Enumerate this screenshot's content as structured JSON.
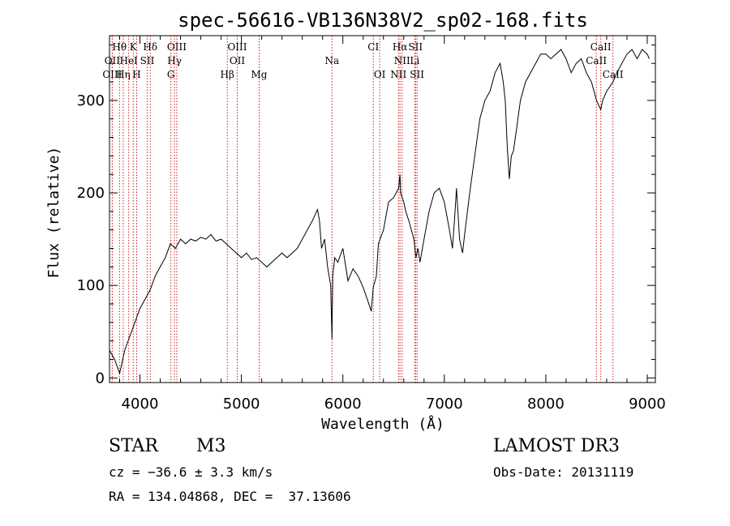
{
  "chart_data": {
    "type": "line",
    "title": "spec-56616-VB136N38V2_sp02-168.fits",
    "xlabel": "Wavelength (Å)",
    "ylabel": "Flux (relative)",
    "xlim": [
      3700,
      9080
    ],
    "ylim": [
      -5,
      370
    ],
    "xticks": [
      4000,
      5000,
      6000,
      7000,
      8000,
      9000
    ],
    "yticks": [
      0,
      100,
      200,
      300
    ],
    "line_color": "#000000",
    "marker_color": "#cc2222",
    "series": [
      {
        "x": [
          3700,
          3750,
          3800,
          3850,
          3900,
          3950,
          4000,
          4050,
          4100,
          4150,
          4200,
          4250,
          4300,
          4350,
          4400,
          4450,
          4500,
          4550,
          4600,
          4650,
          4700,
          4750,
          4800,
          4850,
          4900,
          4950,
          5000,
          5050,
          5100,
          5150,
          5200,
          5250,
          5300,
          5350,
          5400,
          5450,
          5500,
          5550,
          5600,
          5650,
          5700,
          5750,
          5770,
          5790,
          5820,
          5850,
          5880,
          5893,
          5900,
          5920,
          5950,
          6000,
          6050,
          6100,
          6150,
          6200,
          6250,
          6280,
          6300,
          6330,
          6350,
          6400,
          6450,
          6500,
          6550,
          6563,
          6570,
          6600,
          6620,
          6650,
          6700,
          6720,
          6740,
          6760,
          6800,
          6850,
          6900,
          6950,
          7000,
          7050,
          7080,
          7100,
          7120,
          7150,
          7180,
          7200,
          7250,
          7300,
          7350,
          7400,
          7450,
          7500,
          7550,
          7580,
          7600,
          7620,
          7640,
          7660,
          7680,
          7700,
          7750,
          7800,
          7850,
          7900,
          7950,
          8000,
          8050,
          8100,
          8150,
          8200,
          8250,
          8300,
          8350,
          8400,
          8450,
          8500,
          8542,
          8560,
          8600,
          8662,
          8700,
          8750,
          8800,
          8850,
          8900,
          8950,
          9000,
          9020
        ],
        "y": [
          30,
          20,
          5,
          30,
          45,
          60,
          75,
          85,
          95,
          110,
          120,
          130,
          145,
          140,
          150,
          145,
          150,
          148,
          152,
          150,
          155,
          148,
          150,
          145,
          140,
          135,
          130,
          135,
          128,
          130,
          125,
          120,
          125,
          130,
          135,
          130,
          135,
          140,
          150,
          160,
          170,
          182,
          170,
          140,
          150,
          120,
          100,
          42,
          110,
          130,
          125,
          140,
          105,
          118,
          110,
          98,
          82,
          72,
          98,
          110,
          145,
          160,
          190,
          195,
          205,
          220,
          200,
          190,
          180,
          170,
          150,
          130,
          140,
          125,
          150,
          180,
          200,
          205,
          190,
          160,
          140,
          170,
          205,
          150,
          135,
          155,
          200,
          240,
          280,
          300,
          310,
          330,
          340,
          320,
          300,
          250,
          215,
          240,
          245,
          260,
          300,
          320,
          330,
          340,
          350,
          350,
          345,
          350,
          355,
          345,
          330,
          340,
          345,
          330,
          320,
          300,
          290,
          300,
          310,
          320,
          330,
          340,
          350,
          355,
          345,
          355,
          350,
          345
        ]
      }
    ],
    "lines": [
      {
        "label": "Hθ",
        "row": 1,
        "x": 3798
      },
      {
        "label": "K",
        "row": 1,
        "x": 3934
      },
      {
        "label": "Hδ",
        "row": 1,
        "x": 4102
      },
      {
        "label": "OIII",
        "row": 1,
        "x": 4363
      },
      {
        "label": "OIII",
        "row": 1,
        "x": 4959
      },
      {
        "label": "CI",
        "row": 1,
        "x": 6300
      },
      {
        "label": "Hα",
        "row": 1,
        "x": 6563
      },
      {
        "label": "SII",
        "row": 1,
        "x": 6716
      },
      {
        "label": "CaII",
        "row": 1,
        "x": 8542
      },
      {
        "label": "OII",
        "row": 2,
        "x": 3727
      },
      {
        "label": "HeI",
        "row": 2,
        "x": 3889
      },
      {
        "label": "SII",
        "row": 2,
        "x": 4072
      },
      {
        "label": "Hγ",
        "row": 2,
        "x": 4340
      },
      {
        "label": "OII",
        "row": 2,
        "x": 4959
      },
      {
        "label": "Na",
        "row": 2,
        "x": 5893
      },
      {
        "label": "NII",
        "row": 2,
        "x": 6584
      },
      {
        "label": "Li",
        "row": 2,
        "x": 6708
      },
      {
        "label": "CaII",
        "row": 2,
        "x": 8498
      },
      {
        "label": "OIII",
        "row": 3,
        "x": 3727
      },
      {
        "label": "Hη",
        "row": 3,
        "x": 3835
      },
      {
        "label": "H",
        "row": 3,
        "x": 3968
      },
      {
        "label": "G",
        "row": 3,
        "x": 4305
      },
      {
        "label": "Hβ",
        "row": 3,
        "x": 4861
      },
      {
        "label": "Mg",
        "row": 3,
        "x": 5175
      },
      {
        "label": "OI",
        "row": 3,
        "x": 6363
      },
      {
        "label": "NII",
        "row": 3,
        "x": 6548
      },
      {
        "label": "SII",
        "row": 3,
        "x": 6731
      },
      {
        "label": "CaII",
        "row": 3,
        "x": 8662
      }
    ]
  },
  "info": {
    "object_type": "STAR",
    "subclass": "M3",
    "cz": "cz = −36.6 ± 3.3 km/s",
    "coords": "RA = 134.04868, DEC =  37.13606",
    "survey": "LAMOST DR3",
    "obs_date": "Obs-Date: 20131119"
  }
}
